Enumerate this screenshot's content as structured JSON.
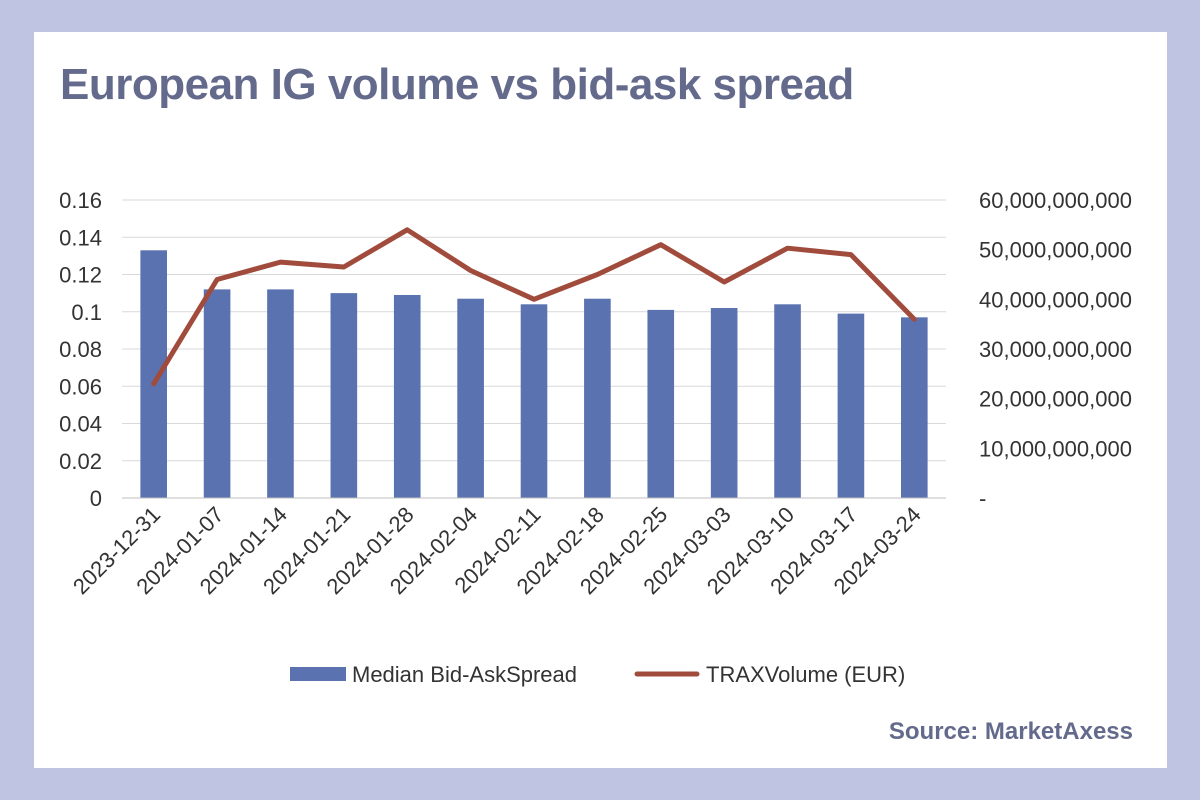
{
  "title": "European IG volume vs bid-ask spread",
  "source": "Source: MarketAxess",
  "chart_data": {
    "type": "bar",
    "title": "European IG volume vs bid-ask spread",
    "categories": [
      "2023-12-31",
      "2024-01-07",
      "2024-01-14",
      "2024-01-21",
      "2024-01-28",
      "2024-02-04",
      "2024-02-11",
      "2024-02-18",
      "2024-02-25",
      "2024-03-03",
      "2024-03-10",
      "2024-03-17",
      "2024-03-24"
    ],
    "series": [
      {
        "name": "Median Bid-AskSpread",
        "type": "bar",
        "axis": "left",
        "color": "#5b72b0",
        "values": [
          0.133,
          0.112,
          0.112,
          0.11,
          0.109,
          0.107,
          0.104,
          0.107,
          0.101,
          0.102,
          0.104,
          0.099,
          0.097
        ]
      },
      {
        "name": "TRAXVolume (EUR)",
        "type": "line",
        "axis": "right",
        "color": "#a14b3c",
        "values": [
          23000000000,
          44000000000,
          47500000000,
          46500000000,
          54000000000,
          45800000000,
          40000000000,
          45000000000,
          51000000000,
          43500000000,
          50300000000,
          49000000000,
          36000000000
        ]
      }
    ],
    "y_left": {
      "ylim": [
        0,
        0.16
      ],
      "ticks": [
        0,
        0.02,
        0.04,
        0.06,
        0.08,
        0.1,
        0.12,
        0.14,
        0.16
      ],
      "tick_labels": [
        "0",
        "0.02",
        "0.04",
        "0.06",
        "0.08",
        "0.1",
        "0.12",
        "0.14",
        "0.16"
      ]
    },
    "y_right": {
      "ylim": [
        0,
        60000000000
      ],
      "ticks": [
        0,
        10000000000,
        20000000000,
        30000000000,
        40000000000,
        50000000000,
        60000000000
      ],
      "tick_labels": [
        "-",
        "10,000,000,000",
        "20,000,000,000",
        "30,000,000,000",
        "40,000,000,000",
        "50,000,000,000",
        "60,000,000,000"
      ]
    },
    "grid": true,
    "legend": "bottom"
  }
}
